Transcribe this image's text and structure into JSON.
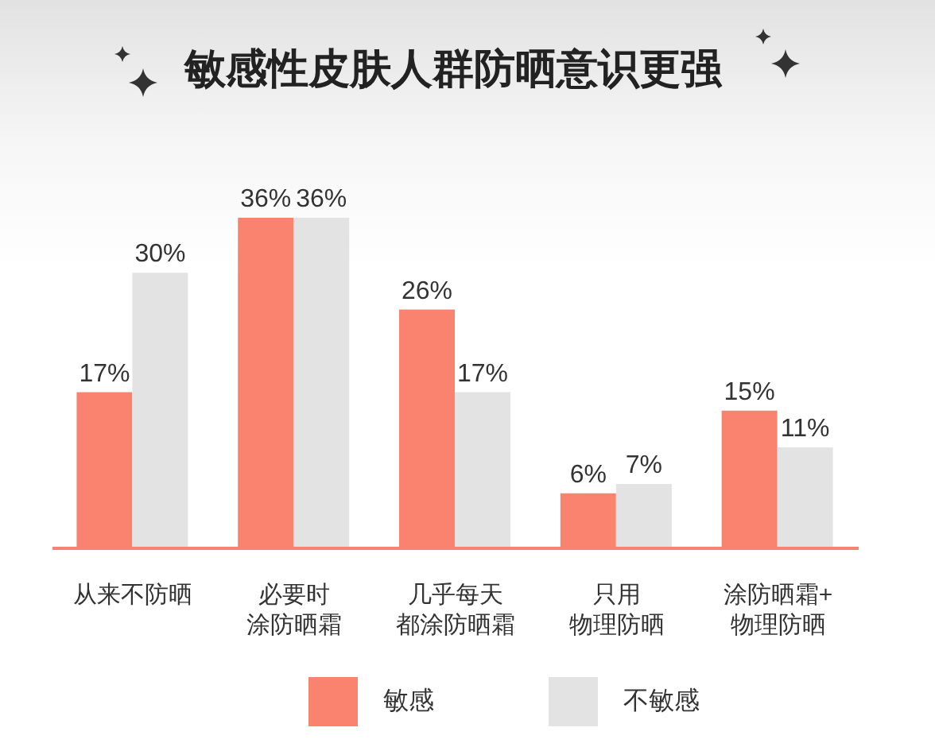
{
  "chart_data": {
    "type": "bar",
    "title": "敏感性皮肤人群防晒意识更强",
    "categories": [
      "从来不防晒",
      "必要时涂防晒霜",
      "几乎每天都涂防晒霜",
      "只用物理防晒",
      "涂防晒霜+物理防晒"
    ],
    "series": [
      {
        "name": "敏感",
        "color": "#fa8370",
        "values": [
          17,
          36,
          26,
          6,
          15
        ],
        "value_labels": [
          "17%",
          "36%",
          "26%",
          "6%",
          "15%"
        ]
      },
      {
        "name": "不敏感",
        "color": "#e3e3e3",
        "values": [
          30,
          36,
          17,
          7,
          11
        ],
        "value_labels": [
          "30%",
          "36%",
          "17%",
          "7%",
          "11%"
        ]
      }
    ],
    "legend": "bottom"
  }
}
